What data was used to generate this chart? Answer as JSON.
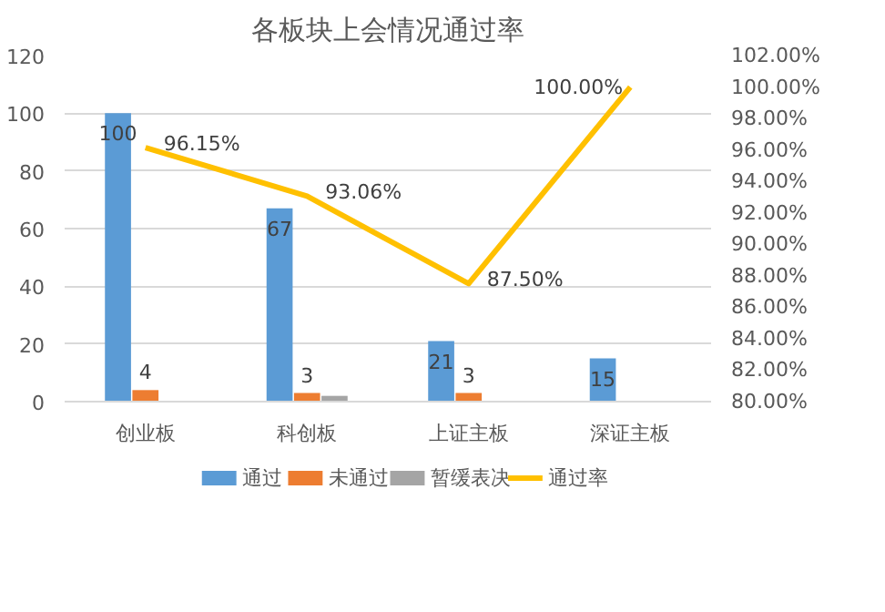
{
  "chart_data": {
    "type": "bar",
    "title": "各板块上会情况通过率",
    "categories": [
      "创业板",
      "科创板",
      "上证主板",
      "深证主板"
    ],
    "series": [
      {
        "name": "通过",
        "color": "#5b9bd5",
        "values": [
          100,
          67,
          21,
          15
        ],
        "value_labels": [
          "100",
          "67",
          "21",
          "15"
        ]
      },
      {
        "name": "未通过",
        "color": "#ed7d31",
        "values": [
          4,
          3,
          3,
          null
        ],
        "value_labels": [
          "4",
          "3",
          "3",
          null
        ]
      },
      {
        "name": "暂缓表决",
        "color": "#a5a5a5",
        "values": [
          null,
          2,
          null,
          null
        ]
      },
      {
        "name": "通过率",
        "type": "line",
        "axis": "y2",
        "color": "#ffc000",
        "values": [
          96.15,
          93.06,
          87.5,
          100
        ],
        "value_labels": [
          "96.15%",
          "93.06%",
          "87.50%",
          "100.00%"
        ]
      }
    ],
    "ylim": [
      0,
      120
    ],
    "yticks": [
      0,
      20,
      40,
      60,
      80,
      100,
      120
    ],
    "y2lim": [
      80,
      102
    ],
    "y2ticks": [
      {
        "value": 80,
        "label": "80.00%"
      },
      {
        "value": 82,
        "label": "82.00%"
      },
      {
        "value": 84,
        "label": "84.00%"
      },
      {
        "value": 86,
        "label": "86.00%"
      },
      {
        "value": 88,
        "label": "88.00%"
      },
      {
        "value": 90,
        "label": "90.00%"
      },
      {
        "value": 92,
        "label": "92.00%"
      },
      {
        "value": 94,
        "label": "94.00%"
      },
      {
        "value": 96,
        "label": "96.00%"
      },
      {
        "value": 98,
        "label": "98.00%"
      },
      {
        "value": 100,
        "label": "100.00%"
      },
      {
        "value": 102,
        "label": "102.00%"
      }
    ],
    "grid": "y",
    "legend": "bottom"
  }
}
